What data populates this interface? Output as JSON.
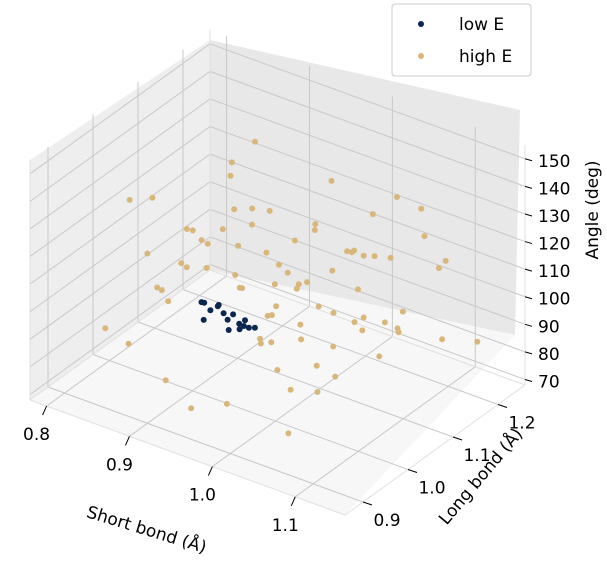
{
  "chart_data": {
    "type": "scatter",
    "projection": "3d",
    "title": "",
    "xlabel": "Short bond (Å)",
    "ylabel": "Long bond (Å)",
    "zlabel": "Angle (deg)",
    "xlim": [
      0.78,
      1.16
    ],
    "ylim": [
      0.86,
      1.26
    ],
    "zlim": [
      68,
      155
    ],
    "xticks": [
      0.8,
      0.9,
      1.0,
      1.1
    ],
    "yticks": [
      0.9,
      1.0,
      1.1,
      1.2
    ],
    "zticks": [
      70,
      80,
      90,
      100,
      110,
      120,
      130,
      140,
      150
    ],
    "grid": true,
    "legend": {
      "position": "top-right",
      "entries": [
        "low E",
        "high E"
      ]
    },
    "colors": {
      "low E": "#0b2750",
      "high E": "#d9b77b",
      "pane": "#f2f2f2",
      "grid": "#c8c8c8"
    },
    "series": [
      {
        "name": "low E",
        "x": [
          0.943,
          0.967,
          0.919,
          0.955,
          0.931,
          0.978,
          0.946,
          0.926,
          0.961,
          0.938,
          0.971,
          0.949,
          0.913,
          0.958,
          0.935,
          0.942
        ],
        "y": [
          0.99,
          1.002,
          0.985,
          1.013,
          0.969,
          0.995,
          1.02,
          0.992,
          0.978,
          1.008,
          0.986,
          0.966,
          1.001,
          0.997,
          1.016,
          0.981
        ],
        "z": [
          102,
          98,
          104,
          96,
          107,
          100,
          93,
          101,
          105,
          97,
          103,
          108,
          95,
          99,
          92,
          106
        ]
      },
      {
        "name": "high E",
        "x": [
          0.822,
          0.857,
          0.889,
          0.912,
          0.934,
          0.958,
          0.981,
          1.004,
          1.027,
          1.051,
          1.074,
          1.098,
          1.121,
          1.143,
          0.835,
          0.868,
          0.901,
          0.925,
          0.947,
          0.972,
          0.995,
          1.018,
          1.043,
          1.066,
          1.089,
          1.112,
          1.135,
          0.846,
          0.879,
          0.908,
          0.93,
          0.953,
          0.976,
          0.999,
          1.022,
          1.047,
          1.07,
          1.093,
          1.116,
          0.828,
          0.861,
          0.894,
          0.919,
          0.942,
          0.965,
          0.988,
          1.011,
          1.036,
          1.059,
          1.082,
          1.105,
          1.128,
          0.852,
          0.884,
          0.915,
          0.939,
          0.962,
          0.985,
          1.008,
          1.031,
          1.055,
          1.078,
          1.101,
          1.124,
          0.874,
          0.897,
          0.922,
          0.945,
          0.969,
          0.993,
          1.016,
          1.039,
          1.062,
          1.086,
          0.904,
          0.928,
          0.951,
          0.974,
          0.997,
          1.02,
          1.044,
          1.067
        ],
        "y": [
          0.95,
          1.08,
          0.92,
          1.17,
          1.03,
          0.89,
          1.21,
          0.98,
          1.12,
          0.94,
          1.06,
          1.19,
          0.91,
          1.02,
          1.14,
          0.97,
          1.23,
          0.9,
          1.09,
          1.0,
          0.93,
          1.16,
          1.05,
          0.88,
          1.11,
          0.99,
          1.2,
          0.96,
          1.07,
          1.24,
          0.92,
          1.13,
          1.01,
          0.95,
          1.18,
          1.04,
          0.9,
          1.1,
          0.97,
          1.22,
          0.93,
          1.15,
          1.06,
          0.91,
          1.12,
          0.99,
          1.25,
          1.03,
          0.89,
          1.08,
          1.17,
          0.94,
          1.01,
          1.14,
          0.96,
          1.2,
          1.05,
          0.92,
          1.11,
          1.0,
          1.23,
          0.95,
          1.07,
          1.15,
          0.98,
          1.09,
          0.9,
          1.19,
          1.04,
          0.93,
          1.13,
          1.02,
          1.21,
          0.97,
          1.06,
          1.16,
          0.94,
          1.1,
          1.01,
          1.18,
          0.91,
          1.12
        ],
        "z": [
          88,
          112,
          126,
          95,
          134,
          81,
          103,
          147,
          118,
          92,
          129,
          86,
          108,
          121,
          99,
          138,
          78,
          115,
          90,
          142,
          124,
          84,
          106,
          131,
          97,
          119,
          88,
          136,
          102,
          80,
          127,
          113,
          94,
          145,
          109,
          123,
          83,
          100,
          132,
          117,
          89,
          140,
          105,
          128,
          85,
          96,
          121,
          110,
          137,
          91,
          115,
          125,
          99,
          87,
          133,
          107,
          119,
          82,
          143,
          101,
          114,
          93,
          130,
          122,
          104,
          135,
          86,
          111,
          98,
          139,
          116,
          90,
          127,
          108,
          120,
          95,
          134,
          103,
          85,
          124,
          112,
          97
        ]
      }
    ]
  }
}
